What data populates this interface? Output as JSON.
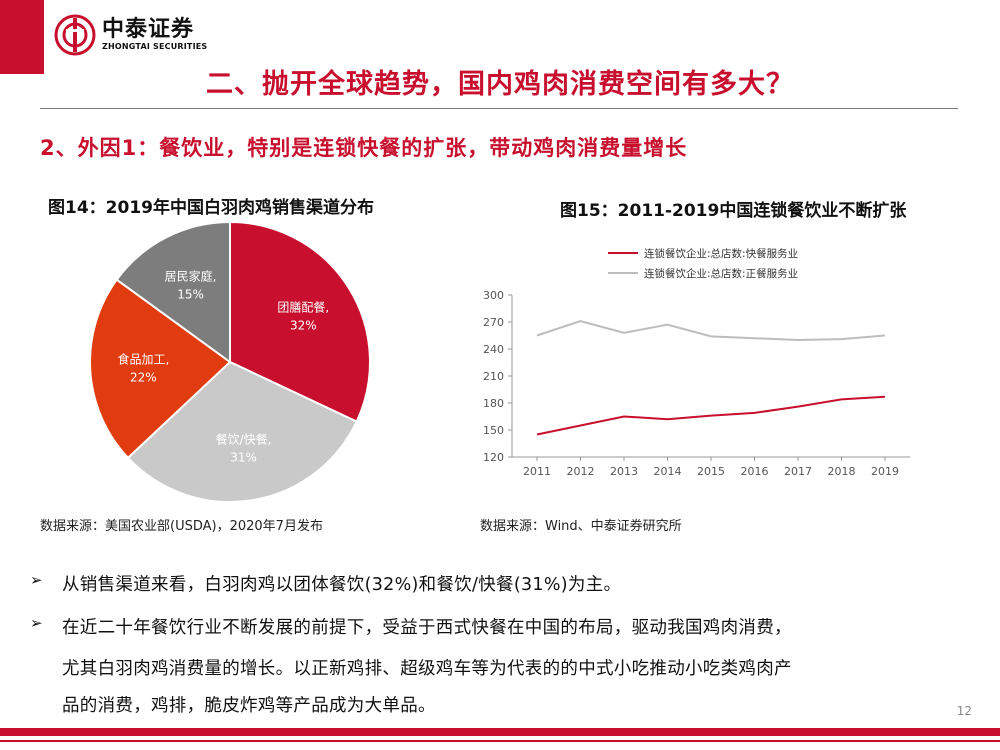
{
  "header": {
    "logo_cn": "中泰证券",
    "logo_en": "ZHONGTAI SECURITIES",
    "title": "二、抛开全球趋势，国内鸡肉消费空间有多大？",
    "subtitle": "2、外因1：餐饮业，特别是连锁快餐的扩张，带动鸡肉消费量增长"
  },
  "fig14": {
    "title": "图14：2019年中国白羽肉鸡销售渠道分布",
    "source": "数据来源：美国农业部(USDA)，2020年7月发布"
  },
  "fig15": {
    "title": "图15：2011-2019中国连锁餐饮业不断扩张",
    "source": "数据来源：Wind、中泰证券研究所"
  },
  "chart_data": [
    {
      "type": "pie",
      "slices": [
        {
          "label": "团膳配餐,",
          "pct": "32%",
          "value": 32,
          "color": "#c8102e"
        },
        {
          "label": "餐饮/快餐,",
          "pct": "31%",
          "value": 31,
          "color": "#c9c9c9"
        },
        {
          "label": "食品加工,",
          "pct": "22%",
          "value": 22,
          "color": "#e03c0f"
        },
        {
          "label": "居民家庭,",
          "pct": "15%",
          "value": 15,
          "color": "#7d7d7d"
        }
      ]
    },
    {
      "type": "line",
      "x": [
        "2011",
        "2012",
        "2013",
        "2014",
        "2015",
        "2016",
        "2017",
        "2018",
        "2019"
      ],
      "series": [
        {
          "name": "连锁餐饮企业:总店数:快餐服务业",
          "color": "#c8102e",
          "values": [
            145,
            155,
            165,
            162,
            166,
            169,
            176,
            184,
            187
          ]
        },
        {
          "name": "连锁餐饮企业:总店数:正餐服务业",
          "color": "#bdbdbd",
          "values": [
            255,
            271,
            258,
            267,
            254,
            252,
            250,
            251,
            255
          ]
        }
      ],
      "ylim": [
        120,
        300
      ],
      "yticks": [
        "300",
        "270",
        "240",
        "210",
        "180",
        "150",
        "120"
      ],
      "legend_position": "top"
    }
  ],
  "bullets": {
    "b1": "从销售渠道来看，白羽肉鸡以团体餐饮(32%)和餐饮/快餐(31%)为主。",
    "b2_line1": "在近二十年餐饮行业不断发展的前提下，受益于西式快餐在中国的布局，驱动我国鸡肉消费，",
    "b2_line2": "尤其白羽肉鸡消费量的增长。以正新鸡排、超级鸡车等为代表的的中式小吃推动小吃类鸡肉产",
    "b2_line3": "品的消费，鸡排，脆皮炸鸡等产品成为大单品。",
    "arrow": "➢"
  },
  "page_number": "12"
}
